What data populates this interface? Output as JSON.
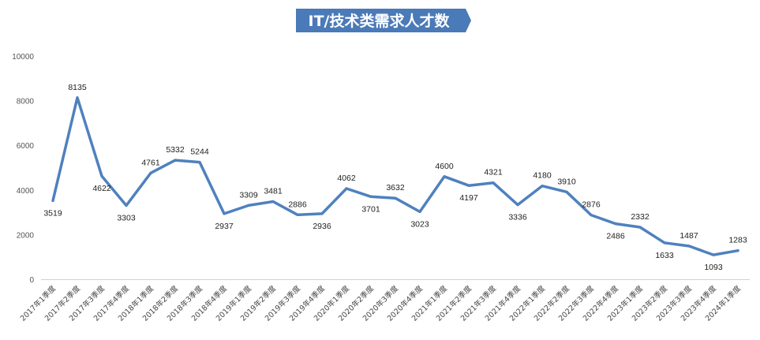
{
  "chart_data": {
    "type": "line",
    "title": "IT/技术类需求人才数",
    "xlabel": "",
    "ylabel": "",
    "ylim": [
      0,
      10000
    ],
    "yticks": [
      0,
      2000,
      4000,
      6000,
      8000,
      10000
    ],
    "grid": false,
    "line_color": "#4f81bd",
    "title_color": "#4a7ab8",
    "categories": [
      "2017年1季度",
      "2017年2季度",
      "2017年3季度",
      "2017年4季度",
      "2018年1季度",
      "2018年2季度",
      "2018年3季度",
      "2018年4季度",
      "2019年1季度",
      "2019年2季度",
      "2019年3季度",
      "2019年4季度",
      "2020年1季度",
      "2020年2季度",
      "2020年3季度",
      "2020年4季度",
      "2021年1季度",
      "2021年2季度",
      "2021年3季度",
      "2021年4季度",
      "2022年1季度",
      "2022年2季度",
      "2022年3季度",
      "2022年4季度",
      "2023年1季度",
      "2023年2季度",
      "2023年3季度",
      "2023年4季度",
      "2024年1季度"
    ],
    "series": [
      {
        "values": [
          3519,
          8135,
          4622,
          3303,
          4761,
          5332,
          5244,
          2937,
          3309,
          3481,
          2886,
          2936,
          4062,
          3701,
          3632,
          3023,
          4600,
          4197,
          4321,
          3336,
          4180,
          3910,
          2876,
          2486,
          2332,
          1633,
          1487,
          1093,
          1283
        ],
        "label_positions": [
          "below",
          "above",
          "below",
          "below",
          "above",
          "above",
          "above",
          "below",
          "above",
          "above",
          "above",
          "below",
          "above",
          "below",
          "above",
          "below",
          "above",
          "below",
          "above",
          "below",
          "above",
          "above",
          "above",
          "below",
          "above",
          "below",
          "above",
          "below",
          "above"
        ]
      }
    ]
  }
}
